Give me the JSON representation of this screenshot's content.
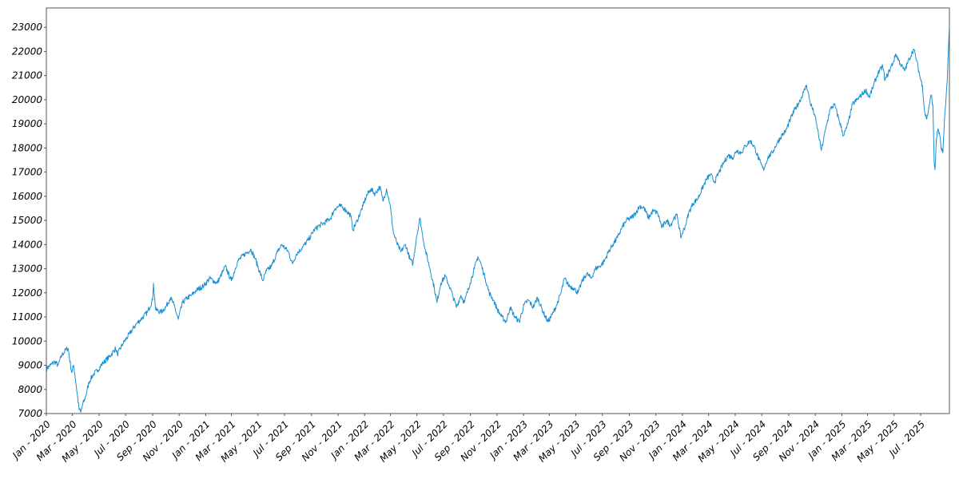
{
  "chart_data": {
    "type": "line",
    "title": "",
    "xlabel": "",
    "ylabel": "",
    "grid": false,
    "legend": "none",
    "line_color": "#1a8fd0",
    "x_range": [
      "2020-01-01",
      "2025-09-05"
    ],
    "ylim": [
      7000,
      23800
    ],
    "y_ticks": [
      {
        "value": 7000,
        "label": "7000"
      },
      {
        "value": 8000,
        "label": "8000"
      },
      {
        "value": 9000,
        "label": "9000"
      },
      {
        "value": 10000,
        "label": "10000"
      },
      {
        "value": 11000,
        "label": "11000"
      },
      {
        "value": 12000,
        "label": "12000"
      },
      {
        "value": 13000,
        "label": "13000"
      },
      {
        "value": 14000,
        "label": "14000"
      },
      {
        "value": 15000,
        "label": "15000"
      },
      {
        "value": 16000,
        "label": "16000"
      },
      {
        "value": 17000,
        "label": "17000"
      },
      {
        "value": 18000,
        "label": "18000"
      },
      {
        "value": 19000,
        "label": "19000"
      },
      {
        "value": 20000,
        "label": "20000"
      },
      {
        "value": 21000,
        "label": "21000"
      },
      {
        "value": 22000,
        "label": "22000"
      },
      {
        "value": 23000,
        "label": "23000"
      }
    ],
    "x_ticks": [
      {
        "value": "2020-01-01",
        "label": "Jan - 2020"
      },
      {
        "value": "2020-03-01",
        "label": "Mar - 2020"
      },
      {
        "value": "2020-05-01",
        "label": "May - 2020"
      },
      {
        "value": "2020-07-01",
        "label": "Jul - 2020"
      },
      {
        "value": "2020-09-01",
        "label": "Sep - 2020"
      },
      {
        "value": "2020-11-01",
        "label": "Nov - 2020"
      },
      {
        "value": "2021-01-01",
        "label": "Jan - 2021"
      },
      {
        "value": "2021-03-01",
        "label": "Mar - 2021"
      },
      {
        "value": "2021-05-01",
        "label": "May - 2021"
      },
      {
        "value": "2021-07-01",
        "label": "Jul - 2021"
      },
      {
        "value": "2021-09-01",
        "label": "Sep - 2021"
      },
      {
        "value": "2021-11-01",
        "label": "Nov - 2021"
      },
      {
        "value": "2022-01-01",
        "label": "Jan - 2022"
      },
      {
        "value": "2022-03-01",
        "label": "Mar - 2022"
      },
      {
        "value": "2022-05-01",
        "label": "May - 2022"
      },
      {
        "value": "2022-07-01",
        "label": "Jul - 2022"
      },
      {
        "value": "2022-09-01",
        "label": "Sep - 2022"
      },
      {
        "value": "2022-11-01",
        "label": "Nov - 2022"
      },
      {
        "value": "2023-01-01",
        "label": "Jan - 2023"
      },
      {
        "value": "2023-03-01",
        "label": "Mar - 2023"
      },
      {
        "value": "2023-05-01",
        "label": "May - 2023"
      },
      {
        "value": "2023-07-01",
        "label": "Jul - 2023"
      },
      {
        "value": "2023-09-01",
        "label": "Sep - 2023"
      },
      {
        "value": "2023-11-01",
        "label": "Nov - 2023"
      },
      {
        "value": "2024-01-01",
        "label": "Jan - 2024"
      },
      {
        "value": "2024-03-01",
        "label": "Mar - 2024"
      },
      {
        "value": "2024-05-01",
        "label": "May - 2024"
      },
      {
        "value": "2024-07-01",
        "label": "Jul - 2024"
      },
      {
        "value": "2024-09-01",
        "label": "Sep - 2024"
      },
      {
        "value": "2024-11-01",
        "label": "Nov - 2024"
      },
      {
        "value": "2025-01-01",
        "label": "Jan - 2025"
      },
      {
        "value": "2025-03-01",
        "label": "Mar - 2025"
      },
      {
        "value": "2025-05-01",
        "label": "May - 2025"
      },
      {
        "value": "2025-07-01",
        "label": "Jul - 2025"
      }
    ],
    "series": [
      {
        "points": [
          [
            "2020-01-01",
            8850
          ],
          [
            "2020-01-10",
            9000
          ],
          [
            "2020-01-20",
            9150
          ],
          [
            "2020-01-28",
            9000
          ],
          [
            "2020-02-05",
            9400
          ],
          [
            "2020-02-15",
            9650
          ],
          [
            "2020-02-20",
            9700
          ],
          [
            "2020-02-28",
            8700
          ],
          [
            "2020-03-04",
            9000
          ],
          [
            "2020-03-10",
            8100
          ],
          [
            "2020-03-16",
            7200
          ],
          [
            "2020-03-20",
            7050
          ],
          [
            "2020-03-24",
            7350
          ],
          [
            "2020-03-31",
            7700
          ],
          [
            "2020-04-08",
            8300
          ],
          [
            "2020-04-17",
            8600
          ],
          [
            "2020-04-28",
            8800
          ],
          [
            "2020-05-10",
            9100
          ],
          [
            "2020-05-25",
            9350
          ],
          [
            "2020-06-08",
            9700
          ],
          [
            "2020-06-12",
            9450
          ],
          [
            "2020-06-25",
            9900
          ],
          [
            "2020-07-10",
            10300
          ],
          [
            "2020-07-25",
            10700
          ],
          [
            "2020-08-05",
            10900
          ],
          [
            "2020-08-20",
            11200
          ],
          [
            "2020-09-01",
            11700
          ],
          [
            "2020-09-03",
            12400
          ],
          [
            "2020-09-08",
            11300
          ],
          [
            "2020-09-20",
            11200
          ],
          [
            "2020-10-01",
            11400
          ],
          [
            "2020-10-12",
            11800
          ],
          [
            "2020-10-20",
            11500
          ],
          [
            "2020-10-30",
            10900
          ],
          [
            "2020-11-09",
            11600
          ],
          [
            "2020-11-20",
            11800
          ],
          [
            "2020-11-30",
            11900
          ],
          [
            "2020-12-10",
            12100
          ],
          [
            "2020-12-28",
            12300
          ],
          [
            "2021-01-10",
            12600
          ],
          [
            "2021-01-27",
            12400
          ],
          [
            "2021-02-10",
            12900
          ],
          [
            "2021-02-15",
            13100
          ],
          [
            "2021-03-01",
            12500
          ],
          [
            "2021-03-15",
            13300
          ],
          [
            "2021-03-31",
            13600
          ],
          [
            "2021-04-15",
            13800
          ],
          [
            "2021-04-25",
            13400
          ],
          [
            "2021-05-12",
            12500
          ],
          [
            "2021-05-20",
            12900
          ],
          [
            "2021-06-01",
            13100
          ],
          [
            "2021-06-15",
            13700
          ],
          [
            "2021-06-25",
            14000
          ],
          [
            "2021-07-10",
            13700
          ],
          [
            "2021-07-19",
            13200
          ],
          [
            "2021-07-28",
            13600
          ],
          [
            "2021-08-12",
            13900
          ],
          [
            "2021-08-25",
            14200
          ],
          [
            "2021-09-07",
            14600
          ],
          [
            "2021-09-20",
            14800
          ],
          [
            "2021-10-01",
            14900
          ],
          [
            "2021-10-15",
            15100
          ],
          [
            "2021-10-25",
            15500
          ],
          [
            "2021-11-05",
            15600
          ],
          [
            "2021-11-15",
            15500
          ],
          [
            "2021-11-30",
            15200
          ],
          [
            "2021-12-05",
            14600
          ],
          [
            "2021-12-15",
            15000
          ],
          [
            "2021-12-28",
            15600
          ],
          [
            "2022-01-05",
            16000
          ],
          [
            "2022-01-15",
            16300
          ],
          [
            "2022-01-25",
            16100
          ],
          [
            "2022-02-05",
            16400
          ],
          [
            "2022-02-12",
            15800
          ],
          [
            "2022-02-20",
            16300
          ],
          [
            "2022-02-28",
            15700
          ],
          [
            "2022-03-08",
            14500
          ],
          [
            "2022-03-15",
            14100
          ],
          [
            "2022-03-25",
            13700
          ],
          [
            "2022-04-05",
            14000
          ],
          [
            "2022-04-15",
            13400
          ],
          [
            "2022-04-22",
            13200
          ],
          [
            "2022-04-30",
            14300
          ],
          [
            "2022-05-08",
            15100
          ],
          [
            "2022-05-13",
            14500
          ],
          [
            "2022-05-20",
            13800
          ],
          [
            "2022-05-31",
            13000
          ],
          [
            "2022-06-10",
            12200
          ],
          [
            "2022-06-16",
            11600
          ],
          [
            "2022-06-25",
            12400
          ],
          [
            "2022-07-05",
            12700
          ],
          [
            "2022-07-14",
            12300
          ],
          [
            "2022-07-22",
            11900
          ],
          [
            "2022-07-31",
            11400
          ],
          [
            "2022-08-10",
            11900
          ],
          [
            "2022-08-18",
            11600
          ],
          [
            "2022-08-31",
            12400
          ],
          [
            "2022-09-10",
            13000
          ],
          [
            "2022-09-18",
            13500
          ],
          [
            "2022-09-25",
            13200
          ],
          [
            "2022-10-05",
            12600
          ],
          [
            "2022-10-14",
            12000
          ],
          [
            "2022-10-24",
            11700
          ],
          [
            "2022-11-02",
            11300
          ],
          [
            "2022-11-12",
            11000
          ],
          [
            "2022-11-22",
            10800
          ],
          [
            "2022-12-01",
            11400
          ],
          [
            "2022-12-12",
            11000
          ],
          [
            "2022-12-22",
            10800
          ],
          [
            "2023-01-02",
            11500
          ],
          [
            "2023-01-12",
            11700
          ],
          [
            "2023-01-23",
            11400
          ],
          [
            "2023-02-02",
            11800
          ],
          [
            "2023-02-15",
            11200
          ],
          [
            "2023-02-26",
            10800
          ],
          [
            "2023-03-08",
            11100
          ],
          [
            "2023-03-18",
            11500
          ],
          [
            "2023-03-28",
            12000
          ],
          [
            "2023-04-05",
            12600
          ],
          [
            "2023-04-15",
            12300
          ],
          [
            "2023-04-26",
            12200
          ],
          [
            "2023-05-06",
            12000
          ],
          [
            "2023-05-16",
            12500
          ],
          [
            "2023-05-26",
            12800
          ],
          [
            "2023-06-05",
            12600
          ],
          [
            "2023-06-15",
            13000
          ],
          [
            "2023-06-25",
            13100
          ],
          [
            "2023-07-05",
            13300
          ],
          [
            "2023-07-15",
            13700
          ],
          [
            "2023-07-25",
            14000
          ],
          [
            "2023-08-05",
            14300
          ],
          [
            "2023-08-15",
            14700
          ],
          [
            "2023-08-25",
            15000
          ],
          [
            "2023-09-05",
            15100
          ],
          [
            "2023-09-15",
            15300
          ],
          [
            "2023-09-25",
            15600
          ],
          [
            "2023-10-05",
            15500
          ],
          [
            "2023-10-15",
            15100
          ],
          [
            "2023-10-25",
            15400
          ],
          [
            "2023-11-05",
            15300
          ],
          [
            "2023-11-15",
            14700
          ],
          [
            "2023-11-25",
            15000
          ],
          [
            "2023-12-05",
            14800
          ],
          [
            "2023-12-12",
            15100
          ],
          [
            "2023-12-20",
            15200
          ],
          [
            "2023-12-28",
            14300
          ],
          [
            "2024-01-08",
            14800
          ],
          [
            "2024-01-15",
            15300
          ],
          [
            "2024-01-25",
            15700
          ],
          [
            "2024-02-05",
            15900
          ],
          [
            "2024-02-15",
            16300
          ],
          [
            "2024-02-25",
            16700
          ],
          [
            "2024-03-05",
            16900
          ],
          [
            "2024-03-15",
            16600
          ],
          [
            "2024-03-25",
            17000
          ],
          [
            "2024-04-05",
            17400
          ],
          [
            "2024-04-15",
            17700
          ],
          [
            "2024-04-25",
            17600
          ],
          [
            "2024-05-05",
            17900
          ],
          [
            "2024-05-15",
            17800
          ],
          [
            "2024-05-25",
            18100
          ],
          [
            "2024-06-05",
            18300
          ],
          [
            "2024-06-15",
            18000
          ],
          [
            "2024-06-25",
            17500
          ],
          [
            "2024-07-05",
            17100
          ],
          [
            "2024-07-15",
            17600
          ],
          [
            "2024-07-25",
            17800
          ],
          [
            "2024-08-05",
            18200
          ],
          [
            "2024-08-15",
            18500
          ],
          [
            "2024-08-25",
            18700
          ],
          [
            "2024-09-05",
            19200
          ],
          [
            "2024-09-15",
            19600
          ],
          [
            "2024-09-25",
            19900
          ],
          [
            "2024-10-05",
            20300
          ],
          [
            "2024-10-12",
            20600
          ],
          [
            "2024-10-20",
            19900
          ],
          [
            "2024-10-30",
            19400
          ],
          [
            "2024-11-08",
            18600
          ],
          [
            "2024-11-15",
            17900
          ],
          [
            "2024-11-25",
            18800
          ],
          [
            "2024-12-05",
            19600
          ],
          [
            "2024-12-15",
            19800
          ],
          [
            "2024-12-25",
            19200
          ],
          [
            "2025-01-05",
            18500
          ],
          [
            "2025-01-15",
            19000
          ],
          [
            "2025-01-25",
            19800
          ],
          [
            "2025-02-05",
            20000
          ],
          [
            "2025-02-15",
            20200
          ],
          [
            "2025-02-25",
            20400
          ],
          [
            "2025-03-05",
            20100
          ],
          [
            "2025-03-15",
            20600
          ],
          [
            "2025-03-25",
            21100
          ],
          [
            "2025-04-05",
            21400
          ],
          [
            "2025-04-10",
            20800
          ],
          [
            "2025-04-20",
            21200
          ],
          [
            "2025-04-30",
            21600
          ],
          [
            "2025-05-05",
            21900
          ],
          [
            "2025-05-15",
            21500
          ],
          [
            "2025-05-25",
            21200
          ],
          [
            "2025-06-05",
            21700
          ],
          [
            "2025-06-15",
            22100
          ],
          [
            "2025-06-22",
            21600
          ],
          [
            "2025-06-30",
            20900
          ],
          [
            "2025-07-05",
            20600
          ],
          [
            "2025-07-10",
            19500
          ],
          [
            "2025-07-15",
            19200
          ],
          [
            "2025-07-20",
            19700
          ],
          [
            "2025-07-25",
            20200
          ],
          [
            "2025-07-29",
            19800
          ],
          [
            "2025-08-01",
            17400
          ],
          [
            "2025-08-03",
            17100
          ],
          [
            "2025-08-06",
            18400
          ],
          [
            "2025-08-10",
            18800
          ],
          [
            "2025-08-14",
            18500
          ],
          [
            "2025-08-17",
            18000
          ],
          [
            "2025-08-21",
            17800
          ],
          [
            "2025-08-24",
            18900
          ],
          [
            "2025-08-27",
            19700
          ],
          [
            "2025-08-29",
            20300
          ],
          [
            "2025-08-31",
            20800
          ],
          [
            "2025-09-01",
            21300
          ],
          [
            "2025-09-02",
            21800
          ],
          [
            "2025-09-03",
            22200
          ],
          [
            "2025-09-04",
            22700
          ],
          [
            "2025-09-05",
            23100
          ]
        ]
      }
    ]
  }
}
